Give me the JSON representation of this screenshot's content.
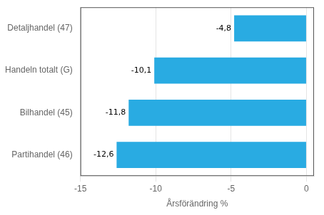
{
  "chart_data": {
    "type": "bar",
    "orientation": "horizontal",
    "categories": [
      "Partihandel (46)",
      "Bilhandel (45)",
      "Handeln totalt (G)",
      "Detaljhandel (47)"
    ],
    "values": [
      -12.6,
      -11.8,
      -10.1,
      -4.8
    ],
    "value_labels": [
      "-12,6",
      "-11,8",
      "-10,1",
      "-4,8"
    ],
    "data_labels": true,
    "color": "#29abe2",
    "xlabel": "Årsförändring %",
    "xlim": [
      -15,
      0.5
    ],
    "xticks": [
      -15,
      -10,
      -5,
      0
    ],
    "grid": true
  }
}
